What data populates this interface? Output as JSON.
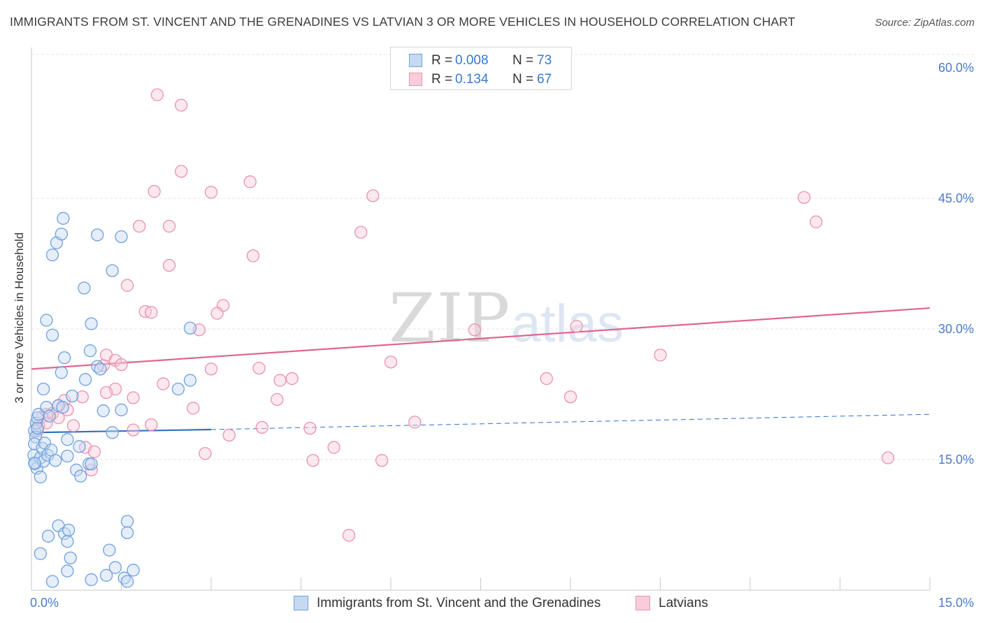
{
  "chart_data": {
    "type": "scatter",
    "title": "IMMIGRANTS FROM ST. VINCENT AND THE GRENADINES VS LATVIAN 3 OR MORE VEHICLES IN HOUSEHOLD CORRELATION CHART",
    "source": "Source: ZipAtlas.com",
    "ylabel": "3 or more Vehicles in Household",
    "xlabel": "",
    "xlim": [
      0,
      15
    ],
    "ylim": [
      0,
      60
    ],
    "x_tick_labels": [
      {
        "value": 0,
        "label": "0.0%"
      },
      {
        "value": 15,
        "label": "15.0%"
      }
    ],
    "y_tick_labels": [
      {
        "value": 15,
        "label": "15.0%"
      },
      {
        "value": 30,
        "label": "30.0%"
      },
      {
        "value": 45,
        "label": "45.0%"
      },
      {
        "value": 60,
        "label": "60.0%"
      }
    ],
    "watermark": {
      "zip": "ZIP",
      "atlas": "atlas"
    },
    "legend": [
      {
        "r_label": "R =",
        "r_value": "0.008",
        "n_label": "N =",
        "n_value": "73"
      },
      {
        "r_label": "R =",
        "r_value": " 0.134",
        "n_label": "N =",
        "n_value": "67"
      }
    ],
    "series": [
      {
        "name": "Immigrants from St. Vincent and the Grenadines",
        "color": "#6fa0dc",
        "fill": "#c5d9f1",
        "trend_color": "#2f6fc8",
        "trend": {
          "x0": 0.0,
          "y0": 18.1,
          "x1": 3.0,
          "y1": 18.45,
          "dash_to_x": 15.0,
          "dash_to_y": 20.2
        },
        "points": [
          [
            0.05,
            18.3
          ],
          [
            0.08,
            19.2
          ],
          [
            0.1,
            19.8
          ],
          [
            0.12,
            20.2
          ],
          [
            0.07,
            17.6
          ],
          [
            0.05,
            16.8
          ],
          [
            0.04,
            15.5
          ],
          [
            0.06,
            14.5
          ],
          [
            0.09,
            14.0
          ],
          [
            0.15,
            15.2
          ],
          [
            0.18,
            16.3
          ],
          [
            0.2,
            14.8
          ],
          [
            0.22,
            16.9
          ],
          [
            0.27,
            15.5
          ],
          [
            0.33,
            16.1
          ],
          [
            0.4,
            14.9
          ],
          [
            0.15,
            13.0
          ],
          [
            0.2,
            23.1
          ],
          [
            0.25,
            21.0
          ],
          [
            0.3,
            20.0
          ],
          [
            0.45,
            21.2
          ],
          [
            0.52,
            21.0
          ],
          [
            0.25,
            31.0
          ],
          [
            0.35,
            29.3
          ],
          [
            0.55,
            26.7
          ],
          [
            0.5,
            25.0
          ],
          [
            0.35,
            38.5
          ],
          [
            0.42,
            39.9
          ],
          [
            0.5,
            40.9
          ],
          [
            0.53,
            42.7
          ],
          [
            0.6,
            17.3
          ],
          [
            0.6,
            15.4
          ],
          [
            0.75,
            13.8
          ],
          [
            0.82,
            13.1
          ],
          [
            0.8,
            16.5
          ],
          [
            0.96,
            14.5
          ],
          [
            1.0,
            14.5
          ],
          [
            0.9,
            24.2
          ],
          [
            0.68,
            22.3
          ],
          [
            0.88,
            34.7
          ],
          [
            1.0,
            30.6
          ],
          [
            0.98,
            27.5
          ],
          [
            1.1,
            25.7
          ],
          [
            1.15,
            25.4
          ],
          [
            1.2,
            20.6
          ],
          [
            1.35,
            36.7
          ],
          [
            1.5,
            20.7
          ],
          [
            1.1,
            40.8
          ],
          [
            1.5,
            40.6
          ],
          [
            2.65,
            30.1
          ],
          [
            2.65,
            24.1
          ],
          [
            2.45,
            23.1
          ],
          [
            1.35,
            18.1
          ],
          [
            0.28,
            6.2
          ],
          [
            0.45,
            7.4
          ],
          [
            0.55,
            6.5
          ],
          [
            0.6,
            5.6
          ],
          [
            0.62,
            6.9
          ],
          [
            0.15,
            4.2
          ],
          [
            0.65,
            3.7
          ],
          [
            0.6,
            2.2
          ],
          [
            1.0,
            1.2
          ],
          [
            0.35,
            1.0
          ],
          [
            1.3,
            4.6
          ],
          [
            1.25,
            1.7
          ],
          [
            1.4,
            2.6
          ],
          [
            1.6,
            7.9
          ],
          [
            1.6,
            6.6
          ],
          [
            1.7,
            2.3
          ],
          [
            1.55,
            1.4
          ],
          [
            1.6,
            1.0
          ],
          [
            0.05,
            14.6
          ],
          [
            0.1,
            18.6
          ]
        ]
      },
      {
        "name": "Latvians",
        "color": "#e892ae",
        "fill": "#f9ccdb",
        "trend_color": "#e0668f",
        "trend": {
          "x0": 0.0,
          "y0": 25.4,
          "x1": 15.0,
          "y1": 32.4
        },
        "points": [
          [
            2.1,
            56.9
          ],
          [
            2.5,
            55.7
          ],
          [
            2.5,
            48.1
          ],
          [
            3.65,
            46.9
          ],
          [
            2.05,
            45.8
          ],
          [
            3.0,
            45.7
          ],
          [
            5.7,
            45.3
          ],
          [
            1.8,
            41.8
          ],
          [
            2.3,
            41.8
          ],
          [
            5.5,
            41.1
          ],
          [
            3.7,
            38.4
          ],
          [
            2.3,
            37.3
          ],
          [
            1.6,
            35.0
          ],
          [
            3.2,
            32.7
          ],
          [
            1.9,
            32.0
          ],
          [
            2.0,
            31.9
          ],
          [
            3.1,
            31.8
          ],
          [
            2.8,
            29.9
          ],
          [
            7.4,
            29.9
          ],
          [
            9.1,
            30.3
          ],
          [
            1.25,
            27.0
          ],
          [
            1.4,
            26.4
          ],
          [
            1.5,
            25.9
          ],
          [
            1.2,
            25.8
          ],
          [
            3.0,
            25.4
          ],
          [
            3.8,
            25.5
          ],
          [
            6.0,
            26.2
          ],
          [
            10.5,
            27.0
          ],
          [
            8.6,
            24.3
          ],
          [
            4.15,
            24.1
          ],
          [
            4.35,
            24.3
          ],
          [
            2.2,
            23.7
          ],
          [
            1.4,
            23.1
          ],
          [
            1.25,
            22.7
          ],
          [
            0.85,
            22.2
          ],
          [
            1.7,
            22.1
          ],
          [
            4.1,
            21.9
          ],
          [
            9.0,
            22.2
          ],
          [
            0.55,
            21.8
          ],
          [
            0.45,
            21.2
          ],
          [
            2.7,
            20.9
          ],
          [
            0.6,
            20.7
          ],
          [
            0.35,
            20.3
          ],
          [
            0.25,
            20.2
          ],
          [
            0.45,
            19.8
          ],
          [
            1.7,
            18.4
          ],
          [
            0.7,
            18.9
          ],
          [
            2.0,
            19.0
          ],
          [
            3.85,
            18.7
          ],
          [
            6.4,
            19.3
          ],
          [
            4.65,
            18.6
          ],
          [
            0.9,
            16.4
          ],
          [
            1.05,
            15.9
          ],
          [
            1.0,
            13.8
          ],
          [
            2.9,
            15.7
          ],
          [
            3.3,
            17.8
          ],
          [
            4.7,
            14.9
          ],
          [
            5.05,
            16.4
          ],
          [
            5.85,
            14.9
          ],
          [
            5.3,
            6.3
          ],
          [
            12.9,
            45.1
          ],
          [
            13.1,
            42.3
          ],
          [
            14.3,
            15.2
          ],
          [
            0.18,
            19.9
          ],
          [
            0.12,
            18.9
          ],
          [
            0.25,
            19.2
          ],
          [
            0.1,
            18.3
          ]
        ]
      }
    ]
  }
}
